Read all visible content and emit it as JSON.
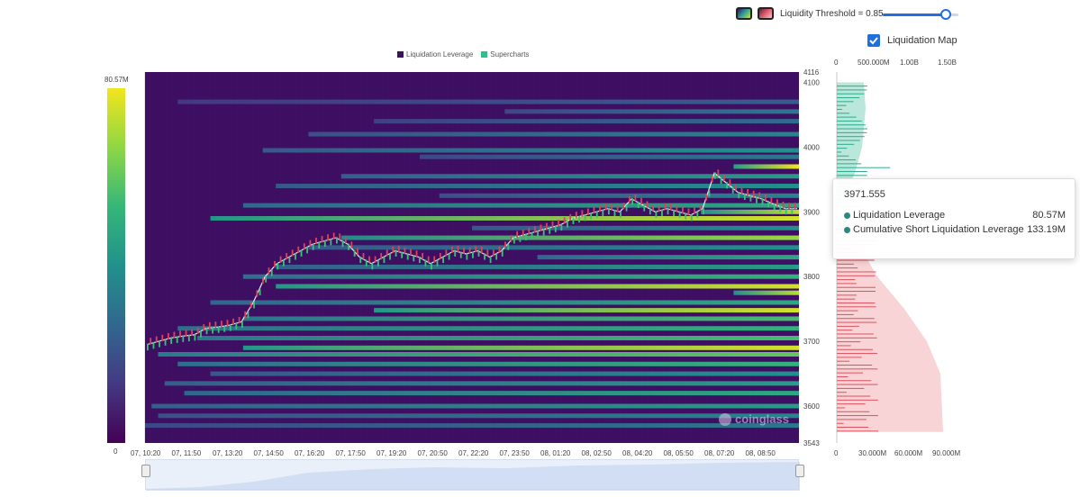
{
  "controls": {
    "threshold_label": "Liquidity Threshold = 0.85",
    "threshold_value": 0.85,
    "liquidation_map_label": "Liquidation Map",
    "liquidation_map_checked": true
  },
  "legend": {
    "items": [
      {
        "label": "Liquidation Leverage",
        "color": "#3b1262"
      },
      {
        "label": "Supercharts",
        "color": "#2ec08a"
      }
    ]
  },
  "colorbar": {
    "max_label": "80.57M",
    "min_label": "0"
  },
  "watermark": "coinglass",
  "tooltip": {
    "price": "3971.555",
    "rows": [
      {
        "label": "Liquidation Leverage",
        "value": "80.57M"
      },
      {
        "label": "Cumulative Short Liquidation Leverage",
        "value": "133.19M"
      }
    ]
  },
  "chart_data": {
    "type": "heatmap",
    "x_ticks": [
      "07, 10:20",
      "07, 11:50",
      "07, 13:20",
      "07, 14:50",
      "07, 16:20",
      "07, 17:50",
      "07, 19:20",
      "07, 20:50",
      "07, 22:20",
      "07, 23:50",
      "08, 01:20",
      "08, 02:50",
      "08, 04:20",
      "08, 05:50",
      "08, 07:20",
      "08, 08:50"
    ],
    "y_ticks": [
      "4116",
      "4100",
      "4000",
      "3900",
      "3800",
      "3700",
      "3600",
      "3543"
    ],
    "ylim": [
      3543,
      4116
    ],
    "color_scale": {
      "min": 0,
      "max": 80.57,
      "unit": "M"
    },
    "price_series": [
      3695,
      3700,
      3705,
      3708,
      3710,
      3720,
      3722,
      3725,
      3730,
      3760,
      3800,
      3820,
      3830,
      3840,
      3850,
      3855,
      3860,
      3850,
      3830,
      3820,
      3830,
      3840,
      3835,
      3830,
      3820,
      3830,
      3840,
      3835,
      3840,
      3830,
      3840,
      3860,
      3865,
      3870,
      3875,
      3880,
      3890,
      3895,
      3900,
      3905,
      3900,
      3920,
      3910,
      3900,
      3905,
      3900,
      3895,
      3905,
      3960,
      3945,
      3930,
      3925,
      3920,
      3912,
      3905,
      3905
    ],
    "liquidation_bands": [
      {
        "price": 4070,
        "level": 0.3
      },
      {
        "price": 4055,
        "level": 0.4
      },
      {
        "price": 4040,
        "level": 0.35
      },
      {
        "price": 4020,
        "level": 0.45
      },
      {
        "price": 3995,
        "level": 0.5
      },
      {
        "price": 3985,
        "level": 0.4
      },
      {
        "price": 3970,
        "level": 1.0
      },
      {
        "price": 3955,
        "level": 0.55
      },
      {
        "price": 3940,
        "level": 0.5
      },
      {
        "price": 3925,
        "level": 0.45
      },
      {
        "price": 3910,
        "level": 0.6
      },
      {
        "price": 3900,
        "level": 0.9
      },
      {
        "price": 3890,
        "level": 0.95
      },
      {
        "price": 3875,
        "level": 0.5
      },
      {
        "price": 3860,
        "level": 0.85
      },
      {
        "price": 3845,
        "level": 0.5
      },
      {
        "price": 3830,
        "level": 0.6
      },
      {
        "price": 3815,
        "level": 0.55
      },
      {
        "price": 3800,
        "level": 0.65
      },
      {
        "price": 3785,
        "level": 0.95
      },
      {
        "price": 3775,
        "level": 0.9
      },
      {
        "price": 3760,
        "level": 0.6
      },
      {
        "price": 3748,
        "level": 0.95
      },
      {
        "price": 3735,
        "level": 0.7
      },
      {
        "price": 3720,
        "level": 0.65
      },
      {
        "price": 3705,
        "level": 0.7
      },
      {
        "price": 3690,
        "level": 0.95
      },
      {
        "price": 3680,
        "level": 0.75
      },
      {
        "price": 3665,
        "level": 0.65
      },
      {
        "price": 3650,
        "level": 0.5
      },
      {
        "price": 3635,
        "level": 0.55
      },
      {
        "price": 3620,
        "level": 0.6
      },
      {
        "price": 3600,
        "level": 0.55
      },
      {
        "price": 3585,
        "level": 0.45
      },
      {
        "price": 3570,
        "level": 0.4
      }
    ],
    "side_panel": {
      "top_axis_ticks": [
        "0",
        "500.000M",
        "1.00B",
        "1.50B"
      ],
      "bottom_axis_ticks": [
        "0",
        "30.000M",
        "60.000M",
        "90.000M"
      ],
      "cumulative_short_color": "#7fd3bb",
      "cumulative_long_color": "#f3a9ae"
    }
  }
}
